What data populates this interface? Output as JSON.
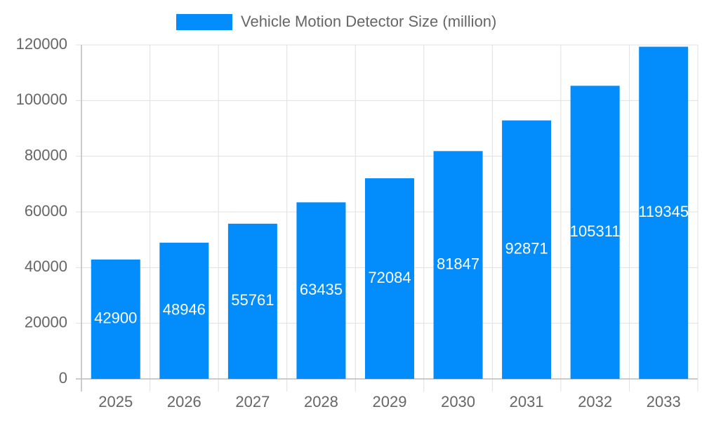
{
  "chart_data": {
    "type": "bar",
    "series": [
      {
        "name": "Vehicle Motion Detector Size (million)",
        "color": "#038cfc",
        "values": [
          42900,
          48946,
          55761,
          63435,
          72084,
          81847,
          92871,
          105311,
          119345
        ]
      }
    ],
    "categories": [
      "2025",
      "2026",
      "2027",
      "2028",
      "2029",
      "2030",
      "2031",
      "2032",
      "2033"
    ],
    "ylim": [
      0,
      120000
    ],
    "yticks": [
      0,
      20000,
      40000,
      60000,
      80000,
      100000,
      120000
    ],
    "grid": true,
    "legend": "top"
  }
}
